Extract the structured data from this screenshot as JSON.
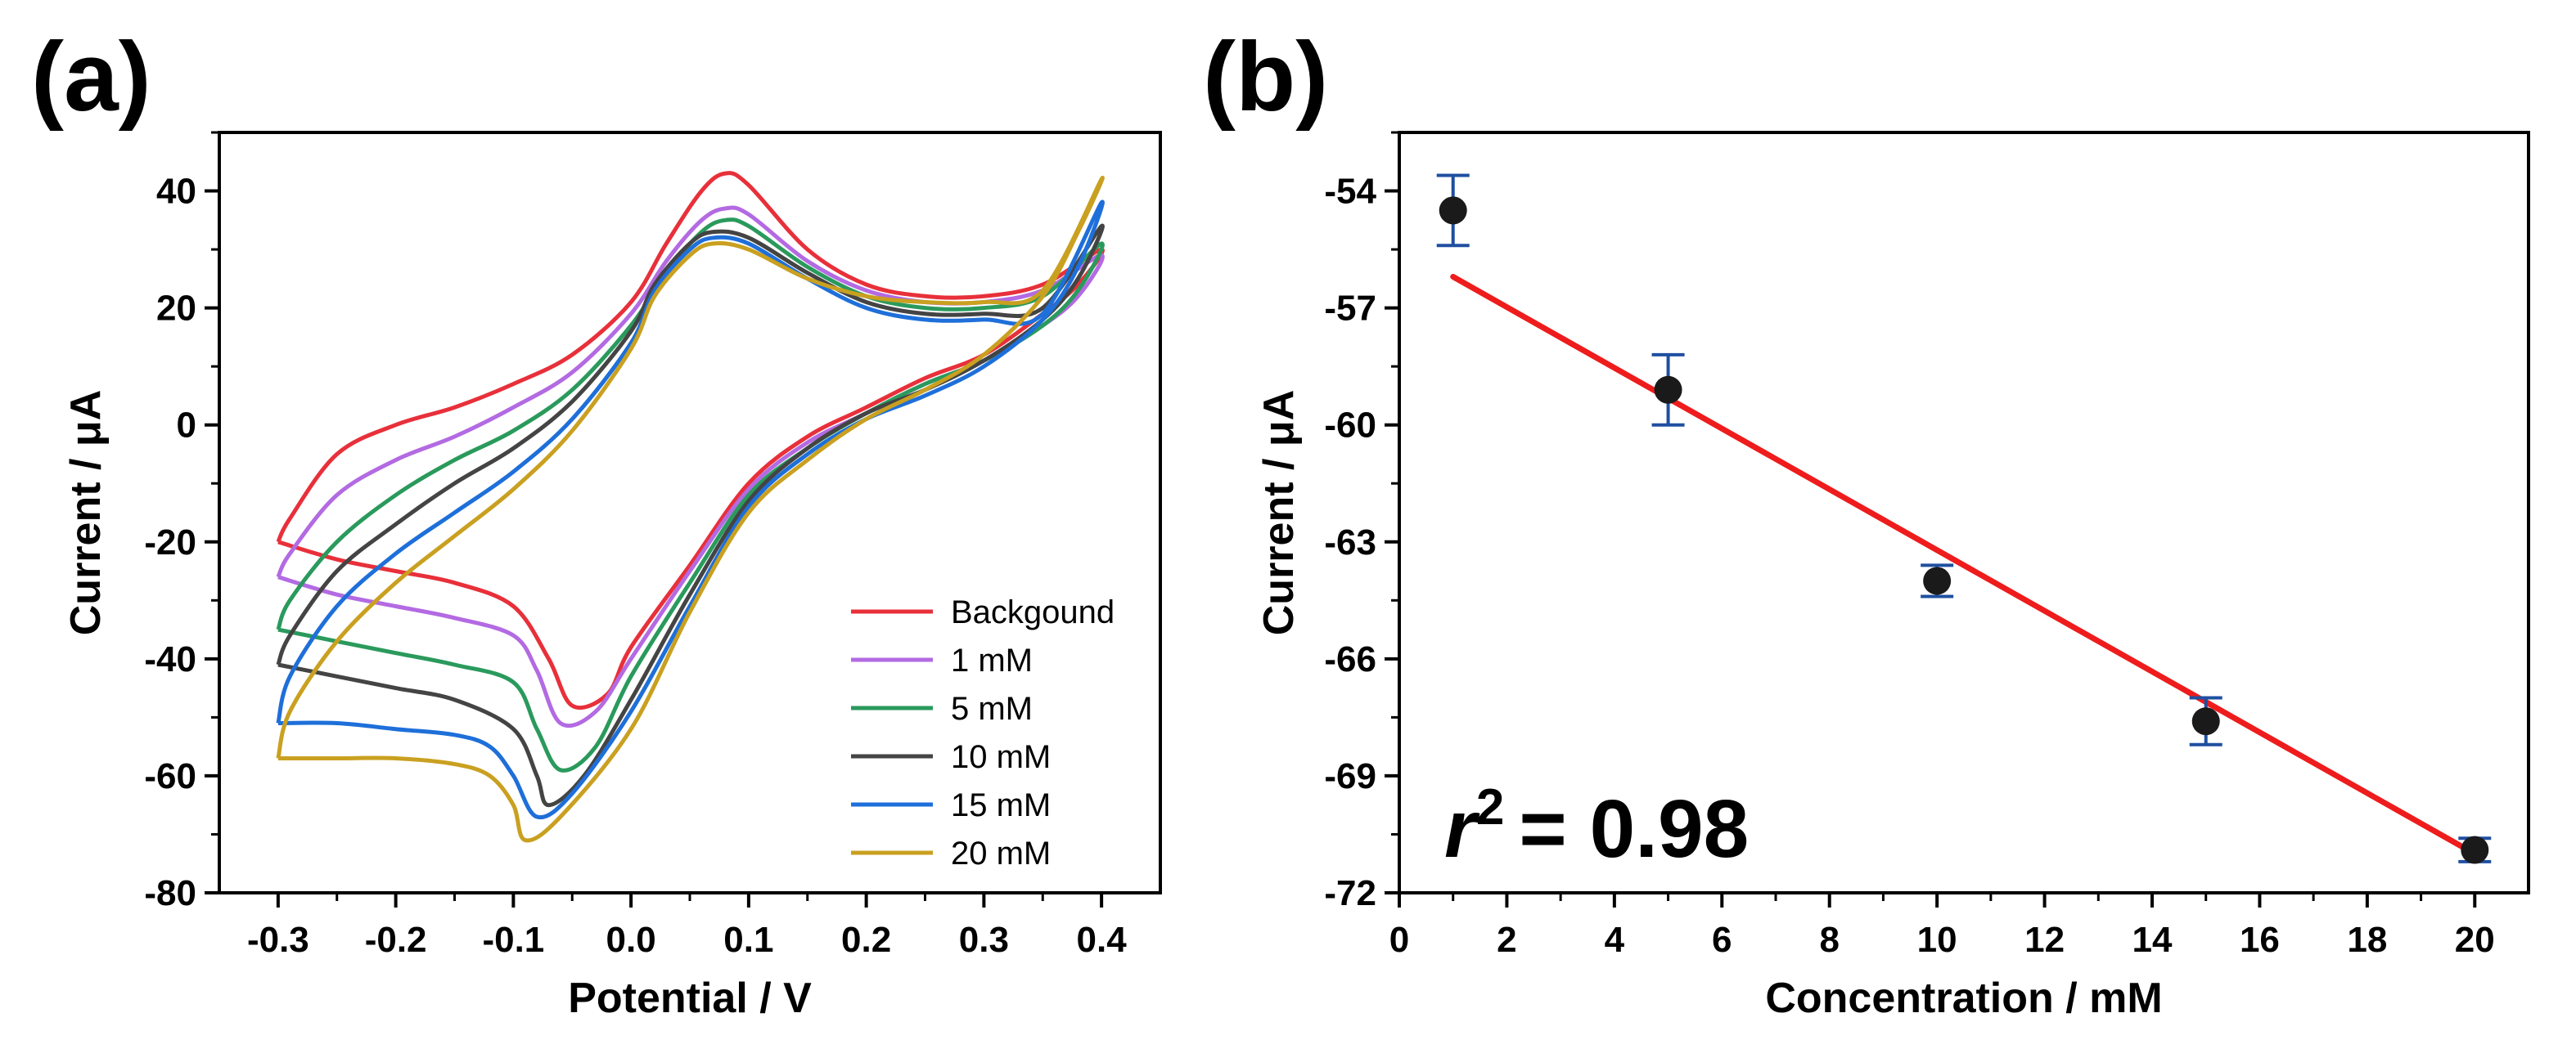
{
  "chart_data": [
    {
      "panel_label": "(a)",
      "type": "line",
      "title": "",
      "xlabel": "Potential / V",
      "ylabel": "Current / μA",
      "xlim": [
        -0.35,
        0.45
      ],
      "ylim": [
        -80,
        50
      ],
      "xticks": [
        -0.3,
        -0.2,
        -0.1,
        0.0,
        0.1,
        0.2,
        0.3,
        0.4
      ],
      "xtick_labels": [
        "-0.3",
        "-0.2",
        "-0.1",
        "0.0",
        "0.1",
        "0.2",
        "0.3",
        "0.4"
      ],
      "yticks": [
        -80,
        -60,
        -40,
        -20,
        0,
        20,
        40
      ],
      "ytick_labels": [
        "-80",
        "-60",
        "-40",
        "-20",
        "0",
        "20",
        "40"
      ],
      "legend_position": "bottom-right",
      "series": [
        {
          "name": "Backgound",
          "color": "#e8303a",
          "forward": [
            [
              -0.3,
              -20
            ],
            [
              -0.25,
              -23
            ],
            [
              -0.2,
              -25
            ],
            [
              -0.15,
              -27
            ],
            [
              -0.1,
              -31
            ],
            [
              -0.07,
              -40
            ],
            [
              -0.05,
              -48
            ],
            [
              -0.02,
              -46
            ],
            [
              0.0,
              -38
            ],
            [
              0.05,
              -24
            ],
            [
              0.1,
              -10
            ],
            [
              0.15,
              -2
            ],
            [
              0.2,
              3
            ],
            [
              0.25,
              8
            ],
            [
              0.3,
              12
            ],
            [
              0.35,
              19
            ],
            [
              0.38,
              24
            ],
            [
              0.4,
              30
            ]
          ],
          "reverse": [
            [
              0.4,
              30
            ],
            [
              0.35,
              24
            ],
            [
              0.3,
              22
            ],
            [
              0.25,
              22
            ],
            [
              0.2,
              24
            ],
            [
              0.15,
              30
            ],
            [
              0.1,
              41
            ],
            [
              0.08,
              43
            ],
            [
              0.06,
              40
            ],
            [
              0.03,
              31
            ],
            [
              0.0,
              21
            ],
            [
              -0.05,
              12
            ],
            [
              -0.1,
              7
            ],
            [
              -0.15,
              3
            ],
            [
              -0.2,
              0
            ],
            [
              -0.25,
              -5
            ],
            [
              -0.29,
              -16
            ],
            [
              -0.3,
              -20
            ]
          ]
        },
        {
          "name": "1 mM",
          "color": "#b36ae2",
          "forward": [
            [
              -0.3,
              -26
            ],
            [
              -0.25,
              -29
            ],
            [
              -0.2,
              -31
            ],
            [
              -0.15,
              -33
            ],
            [
              -0.1,
              -36
            ],
            [
              -0.08,
              -42
            ],
            [
              -0.06,
              -51
            ],
            [
              -0.03,
              -49
            ],
            [
              0.0,
              -40
            ],
            [
              0.05,
              -25
            ],
            [
              0.1,
              -11
            ],
            [
              0.15,
              -3
            ],
            [
              0.2,
              2
            ],
            [
              0.25,
              7
            ],
            [
              0.3,
              11
            ],
            [
              0.35,
              17
            ],
            [
              0.38,
              22
            ],
            [
              0.4,
              29
            ]
          ],
          "reverse": [
            [
              0.4,
              29
            ],
            [
              0.35,
              23
            ],
            [
              0.3,
              21
            ],
            [
              0.25,
              21
            ],
            [
              0.2,
              23
            ],
            [
              0.15,
              28
            ],
            [
              0.1,
              36
            ],
            [
              0.08,
              37
            ],
            [
              0.06,
              35
            ],
            [
              0.03,
              28
            ],
            [
              0.0,
              19
            ],
            [
              -0.05,
              9
            ],
            [
              -0.1,
              3
            ],
            [
              -0.15,
              -2
            ],
            [
              -0.2,
              -6
            ],
            [
              -0.25,
              -12
            ],
            [
              -0.29,
              -22
            ],
            [
              -0.3,
              -26
            ]
          ]
        },
        {
          "name": "5 mM",
          "color": "#2a9a5c",
          "forward": [
            [
              -0.3,
              -35
            ],
            [
              -0.25,
              -37
            ],
            [
              -0.2,
              -39
            ],
            [
              -0.15,
              -41
            ],
            [
              -0.1,
              -44
            ],
            [
              -0.08,
              -52
            ],
            [
              -0.06,
              -59
            ],
            [
              -0.03,
              -55
            ],
            [
              0.0,
              -43
            ],
            [
              0.05,
              -27
            ],
            [
              0.1,
              -12
            ],
            [
              0.15,
              -4
            ],
            [
              0.2,
              2
            ],
            [
              0.25,
              7
            ],
            [
              0.3,
              11
            ],
            [
              0.35,
              17
            ],
            [
              0.38,
              23
            ],
            [
              0.4,
              31
            ]
          ],
          "reverse": [
            [
              0.4,
              31
            ],
            [
              0.35,
              22
            ],
            [
              0.3,
              20
            ],
            [
              0.25,
              20
            ],
            [
              0.2,
              22
            ],
            [
              0.15,
              27
            ],
            [
              0.1,
              34
            ],
            [
              0.08,
              35
            ],
            [
              0.06,
              33
            ],
            [
              0.03,
              26
            ],
            [
              0.0,
              17
            ],
            [
              -0.05,
              6
            ],
            [
              -0.1,
              -1
            ],
            [
              -0.15,
              -6
            ],
            [
              -0.2,
              -12
            ],
            [
              -0.25,
              -20
            ],
            [
              -0.29,
              -30
            ],
            [
              -0.3,
              -35
            ]
          ]
        },
        {
          "name": "10 mM",
          "color": "#444444",
          "forward": [
            [
              -0.3,
              -41
            ],
            [
              -0.25,
              -43
            ],
            [
              -0.2,
              -45
            ],
            [
              -0.15,
              -47
            ],
            [
              -0.1,
              -52
            ],
            [
              -0.08,
              -60
            ],
            [
              -0.07,
              -65
            ],
            [
              -0.04,
              -60
            ],
            [
              0.0,
              -47
            ],
            [
              0.05,
              -29
            ],
            [
              0.1,
              -13
            ],
            [
              0.15,
              -4
            ],
            [
              0.2,
              2
            ],
            [
              0.25,
              6
            ],
            [
              0.3,
              11
            ],
            [
              0.35,
              18
            ],
            [
              0.38,
              25
            ],
            [
              0.4,
              34
            ]
          ],
          "reverse": [
            [
              0.4,
              34
            ],
            [
              0.35,
              20
            ],
            [
              0.3,
              19
            ],
            [
              0.25,
              19
            ],
            [
              0.2,
              21
            ],
            [
              0.15,
              26
            ],
            [
              0.1,
              32
            ],
            [
              0.07,
              33
            ],
            [
              0.05,
              31
            ],
            [
              0.02,
              24
            ],
            [
              0.0,
              16
            ],
            [
              -0.05,
              4
            ],
            [
              -0.1,
              -4
            ],
            [
              -0.15,
              -10
            ],
            [
              -0.2,
              -17
            ],
            [
              -0.25,
              -25
            ],
            [
              -0.29,
              -36
            ],
            [
              -0.3,
              -41
            ]
          ]
        },
        {
          "name": "15 mM",
          "color": "#1e6fd9",
          "forward": [
            [
              -0.3,
              -51
            ],
            [
              -0.25,
              -51
            ],
            [
              -0.2,
              -52
            ],
            [
              -0.15,
              -53
            ],
            [
              -0.12,
              -55
            ],
            [
              -0.1,
              -60
            ],
            [
              -0.08,
              -67
            ],
            [
              -0.05,
              -63
            ],
            [
              0.0,
              -49
            ],
            [
              0.05,
              -31
            ],
            [
              0.1,
              -14
            ],
            [
              0.15,
              -5
            ],
            [
              0.2,
              1
            ],
            [
              0.25,
              5
            ],
            [
              0.3,
              10
            ],
            [
              0.35,
              18
            ],
            [
              0.38,
              27
            ],
            [
              0.4,
              38
            ]
          ],
          "reverse": [
            [
              0.4,
              38
            ],
            [
              0.35,
              19
            ],
            [
              0.3,
              18
            ],
            [
              0.25,
              18
            ],
            [
              0.2,
              20
            ],
            [
              0.15,
              25
            ],
            [
              0.1,
              31
            ],
            [
              0.07,
              32
            ],
            [
              0.05,
              30
            ],
            [
              0.02,
              23
            ],
            [
              0.0,
              14
            ],
            [
              -0.05,
              1
            ],
            [
              -0.1,
              -8
            ],
            [
              -0.15,
              -15
            ],
            [
              -0.2,
              -22
            ],
            [
              -0.25,
              -31
            ],
            [
              -0.29,
              -43
            ],
            [
              -0.3,
              -51
            ]
          ]
        },
        {
          "name": "20 mM",
          "color": "#c9a020",
          "forward": [
            [
              -0.3,
              -57
            ],
            [
              -0.25,
              -57
            ],
            [
              -0.2,
              -57
            ],
            [
              -0.15,
              -58
            ],
            [
              -0.12,
              -60
            ],
            [
              -0.1,
              -65
            ],
            [
              -0.09,
              -71
            ],
            [
              -0.06,
              -67
            ],
            [
              0.0,
              -52
            ],
            [
              0.05,
              -32
            ],
            [
              0.1,
              -15
            ],
            [
              0.15,
              -6
            ],
            [
              0.2,
              1
            ],
            [
              0.25,
              6
            ],
            [
              0.3,
              12
            ],
            [
              0.35,
              22
            ],
            [
              0.38,
              33
            ],
            [
              0.4,
              42
            ]
          ],
          "reverse": [
            [
              0.4,
              42
            ],
            [
              0.35,
              23
            ],
            [
              0.3,
              21
            ],
            [
              0.25,
              21
            ],
            [
              0.2,
              22
            ],
            [
              0.15,
              25
            ],
            [
              0.1,
              30
            ],
            [
              0.07,
              31
            ],
            [
              0.05,
              29
            ],
            [
              0.02,
              22
            ],
            [
              0.0,
              13
            ],
            [
              -0.05,
              -1
            ],
            [
              -0.1,
              -11
            ],
            [
              -0.15,
              -19
            ],
            [
              -0.2,
              -27
            ],
            [
              -0.25,
              -37
            ],
            [
              -0.29,
              -49
            ],
            [
              -0.3,
              -57
            ]
          ]
        }
      ]
    },
    {
      "panel_label": "(b)",
      "type": "scatter",
      "title": "",
      "xlabel": "Concentration / mM",
      "ylabel": "Current / μA",
      "xlim": [
        0,
        21
      ],
      "ylim": [
        -72,
        -52.5
      ],
      "xticks": [
        0,
        2,
        4,
        6,
        8,
        10,
        12,
        14,
        16,
        18,
        20
      ],
      "xtick_labels": [
        "0",
        "2",
        "4",
        "6",
        "8",
        "10",
        "12",
        "14",
        "16",
        "18",
        "20"
      ],
      "yticks": [
        -72,
        -69,
        -66,
        -63,
        -60,
        -57,
        -54
      ],
      "ytick_labels": [
        "-72",
        "-69",
        "-66",
        "-63",
        "-60",
        "-57",
        "-54"
      ],
      "x": [
        1,
        5,
        10,
        15,
        20
      ],
      "y": [
        -54.5,
        -59.1,
        -64.0,
        -67.6,
        -70.9
      ],
      "error": [
        0.9,
        0.9,
        0.4,
        0.6,
        0.3
      ],
      "point_color": "#1a1a1a",
      "errorbar_color": "#1f4fa0",
      "fit": {
        "color": "#ee1c1c",
        "x": [
          1,
          20
        ],
        "y": [
          -56.2,
          -71.0
        ]
      },
      "annotation": {
        "text": "= 0.98",
        "r_symbol": "r",
        "superscript": "2"
      }
    }
  ]
}
